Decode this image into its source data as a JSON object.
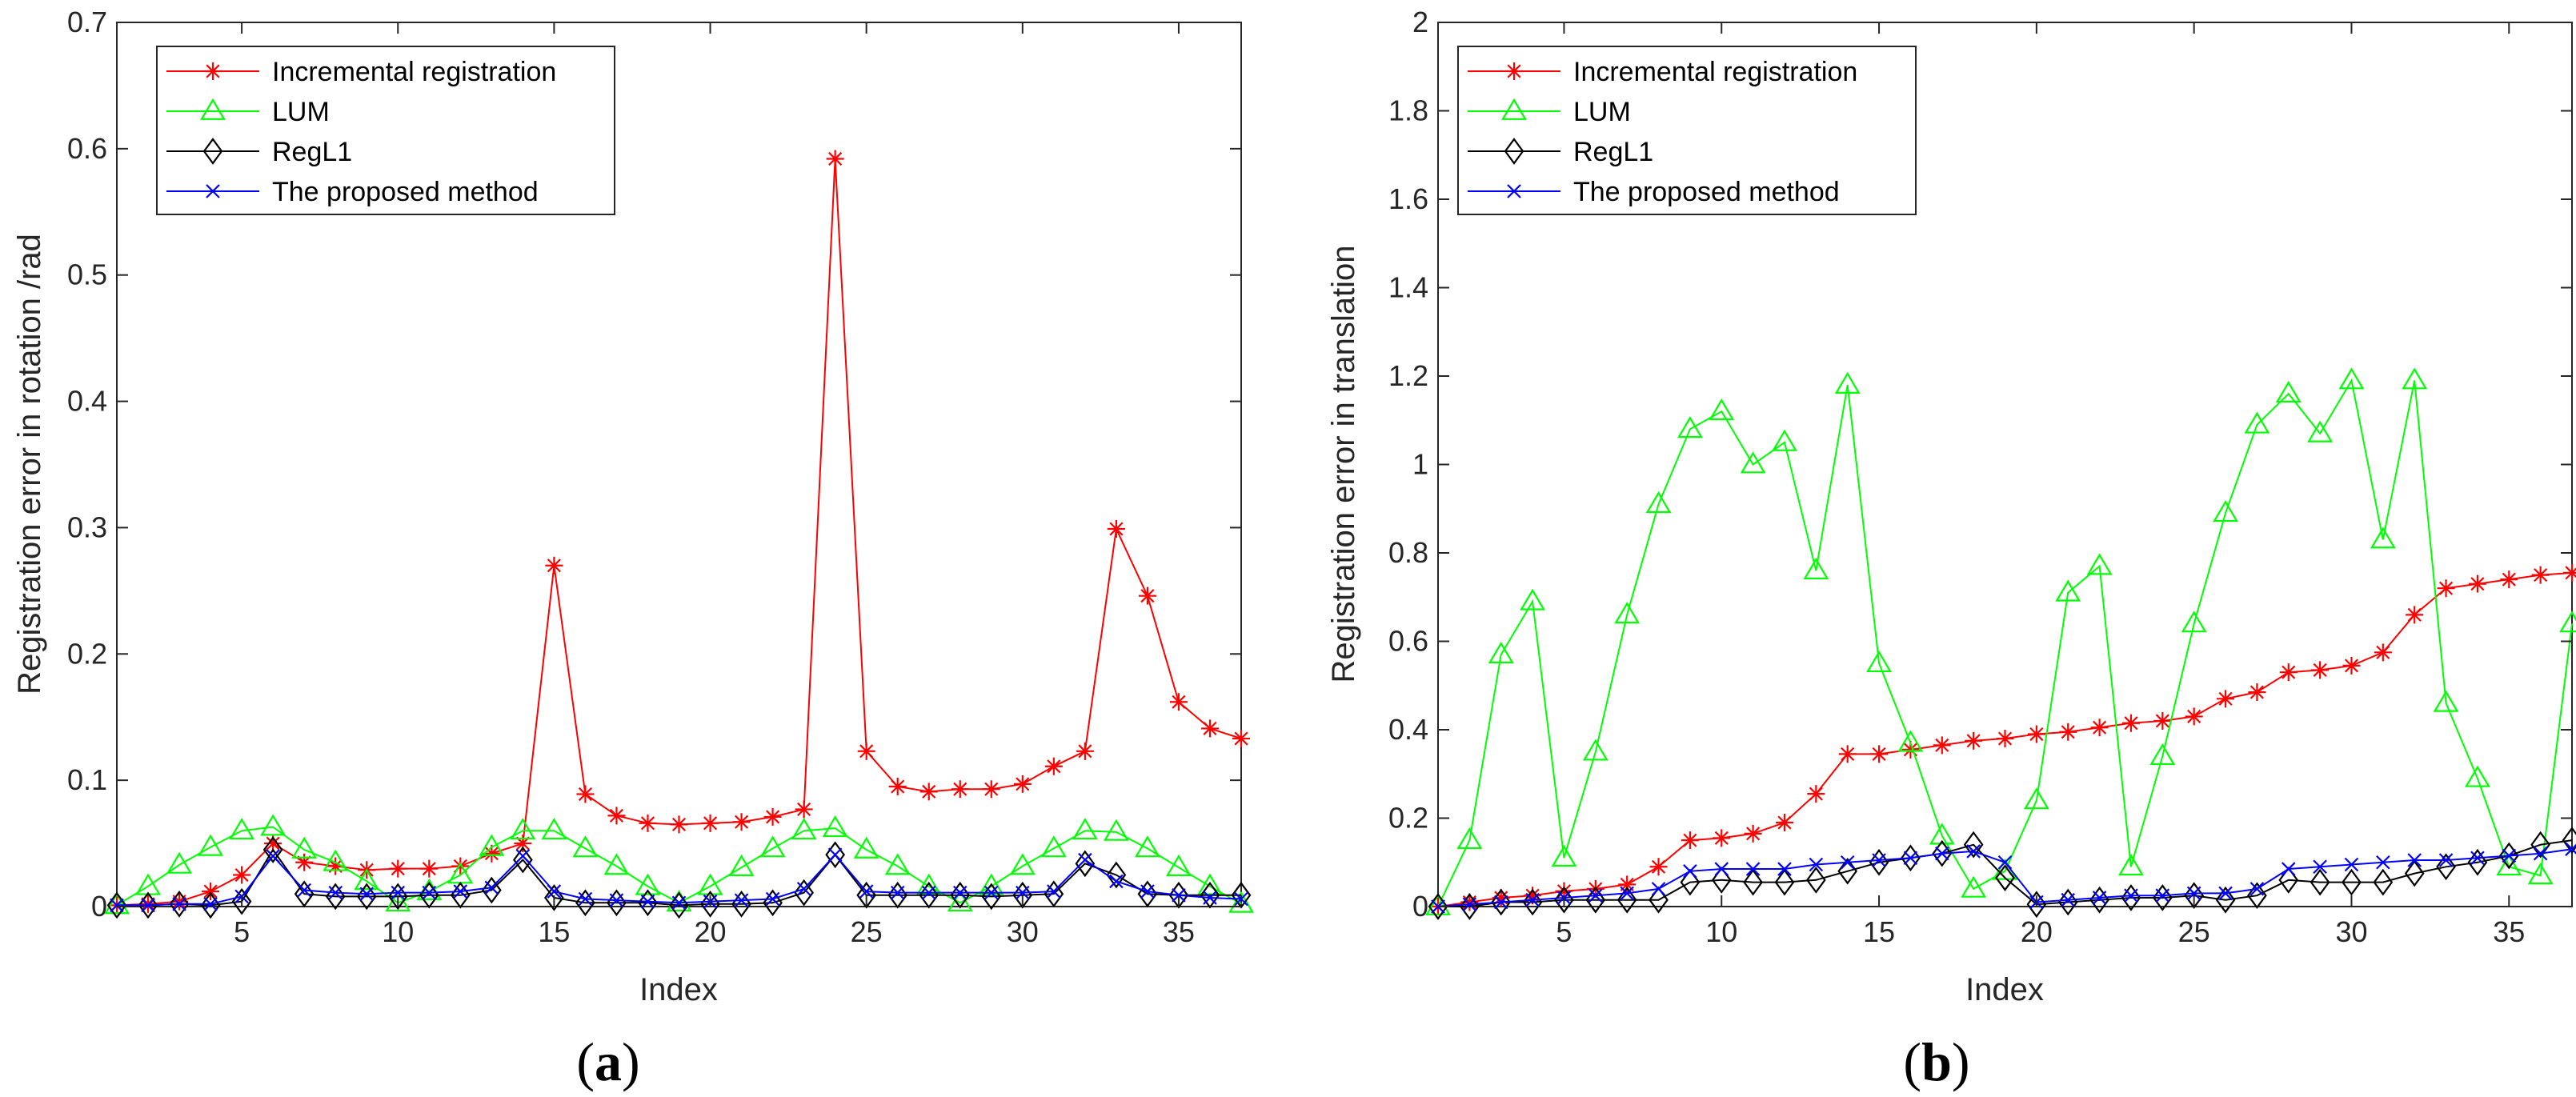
{
  "chart_data": [
    {
      "type": "line",
      "panel_label": "a",
      "title": "",
      "xlabel": "Index",
      "ylabel": "Registration error in rotation /rad",
      "xlim": [
        1,
        37
      ],
      "ylim": [
        0,
        0.7
      ],
      "xticks": [
        5,
        10,
        15,
        20,
        25,
        30,
        35
      ],
      "yticks": [
        0,
        0.1,
        0.2,
        0.3,
        0.4,
        0.5,
        0.6,
        0.7
      ],
      "ytick_labels": [
        "0",
        "0.1",
        "0.2",
        "0.3",
        "0.4",
        "0.5",
        "0.6",
        "0.7"
      ],
      "grid": false,
      "legend_position": "top-left",
      "x": [
        1,
        2,
        3,
        4,
        5,
        6,
        7,
        8,
        9,
        10,
        11,
        12,
        13,
        14,
        15,
        16,
        17,
        18,
        19,
        20,
        21,
        22,
        23,
        24,
        25,
        26,
        27,
        28,
        29,
        30,
        31,
        32,
        33,
        34,
        35,
        36,
        37
      ],
      "series": [
        {
          "name": "Incremental registration",
          "color": "#ff0000",
          "marker": "asterisk",
          "values": [
            0.001,
            0.002,
            0.004,
            0.012,
            0.025,
            0.05,
            0.035,
            0.032,
            0.029,
            0.03,
            0.03,
            0.032,
            0.042,
            0.05,
            0.27,
            0.089,
            0.072,
            0.066,
            0.065,
            0.066,
            0.067,
            0.071,
            0.077,
            0.592,
            0.123,
            0.095,
            0.091,
            0.093,
            0.093,
            0.097,
            0.111,
            0.123,
            0.299,
            0.246,
            0.162,
            0.141,
            0.133
          ]
        },
        {
          "name": "LUM",
          "color": "#00ff00",
          "marker": "triangle",
          "values": [
            0.001,
            0.016,
            0.033,
            0.047,
            0.06,
            0.063,
            0.045,
            0.035,
            0.02,
            0.003,
            0.012,
            0.025,
            0.047,
            0.06,
            0.06,
            0.046,
            0.032,
            0.016,
            0.003,
            0.016,
            0.031,
            0.046,
            0.06,
            0.062,
            0.045,
            0.032,
            0.016,
            0.003,
            0.016,
            0.032,
            0.046,
            0.06,
            0.059,
            0.046,
            0.031,
            0.016,
            0.002
          ]
        },
        {
          "name": "RegL1",
          "color": "#000000",
          "marker": "diamond",
          "values": [
            0.001,
            0.001,
            0.002,
            0.001,
            0.004,
            0.045,
            0.01,
            0.008,
            0.008,
            0.008,
            0.009,
            0.009,
            0.013,
            0.037,
            0.007,
            0.003,
            0.003,
            0.003,
            0.001,
            0.002,
            0.002,
            0.003,
            0.011,
            0.041,
            0.009,
            0.009,
            0.009,
            0.009,
            0.008,
            0.009,
            0.01,
            0.034,
            0.025,
            0.01,
            0.009,
            0.009,
            0.009
          ]
        },
        {
          "name": "The proposed method",
          "color": "#0000ff",
          "marker": "x",
          "values": [
            0.001,
            0.001,
            0.002,
            0.002,
            0.008,
            0.04,
            0.013,
            0.011,
            0.01,
            0.011,
            0.011,
            0.012,
            0.015,
            0.04,
            0.012,
            0.006,
            0.005,
            0.004,
            0.003,
            0.004,
            0.005,
            0.006,
            0.014,
            0.041,
            0.012,
            0.011,
            0.011,
            0.011,
            0.011,
            0.011,
            0.012,
            0.037,
            0.02,
            0.012,
            0.009,
            0.007,
            0.006
          ]
        }
      ]
    },
    {
      "type": "line",
      "panel_label": "b",
      "title": "",
      "xlabel": "Index",
      "ylabel": "Registration error in translation",
      "xlim": [
        1,
        37
      ],
      "ylim": [
        0,
        2
      ],
      "xticks": [
        5,
        10,
        15,
        20,
        25,
        30,
        35
      ],
      "yticks": [
        0,
        0.2,
        0.4,
        0.6,
        0.8,
        1.0,
        1.2,
        1.4,
        1.6,
        1.8,
        2.0
      ],
      "ytick_labels": [
        "0",
        "0.2",
        "0.4",
        "0.6",
        "0.8",
        "1",
        "1.2",
        "1.4",
        "1.6",
        "1.8",
        "2"
      ],
      "grid": false,
      "legend_position": "top-left",
      "x": [
        1,
        2,
        3,
        4,
        5,
        6,
        7,
        8,
        9,
        10,
        11,
        12,
        13,
        14,
        15,
        16,
        17,
        18,
        19,
        20,
        21,
        22,
        23,
        24,
        25,
        26,
        27,
        28,
        29,
        30,
        31,
        32,
        33,
        34,
        35,
        36,
        37
      ],
      "series": [
        {
          "name": "Incremental registration",
          "color": "#ff0000",
          "marker": "asterisk",
          "values": [
            0.0,
            0.01,
            0.02,
            0.025,
            0.035,
            0.04,
            0.05,
            0.09,
            0.15,
            0.155,
            0.165,
            0.19,
            0.255,
            0.345,
            0.345,
            0.355,
            0.365,
            0.375,
            0.38,
            0.39,
            0.395,
            0.405,
            0.415,
            0.42,
            0.43,
            0.47,
            0.485,
            0.53,
            0.535,
            0.545,
            0.575,
            0.66,
            0.72,
            0.73,
            0.74,
            0.75,
            0.755
          ]
        },
        {
          "name": "LUM",
          "color": "#00ff00",
          "marker": "triangle",
          "values": [
            0.0,
            0.15,
            0.57,
            0.69,
            0.11,
            0.35,
            0.66,
            0.91,
            1.08,
            1.12,
            1.0,
            1.05,
            0.76,
            1.18,
            0.55,
            0.37,
            0.16,
            0.04,
            0.08,
            0.24,
            0.71,
            0.77,
            0.09,
            0.34,
            0.64,
            0.89,
            1.09,
            1.16,
            1.07,
            1.19,
            0.83,
            1.19,
            0.46,
            0.29,
            0.09,
            0.07,
            0.64
          ]
        },
        {
          "name": "RegL1",
          "color": "#000000",
          "marker": "diamond",
          "values": [
            0.0,
            0.0,
            0.01,
            0.01,
            0.015,
            0.015,
            0.015,
            0.015,
            0.055,
            0.06,
            0.055,
            0.055,
            0.06,
            0.08,
            0.1,
            0.11,
            0.12,
            0.14,
            0.065,
            0.005,
            0.01,
            0.015,
            0.02,
            0.02,
            0.025,
            0.015,
            0.025,
            0.06,
            0.055,
            0.055,
            0.055,
            0.075,
            0.09,
            0.1,
            0.115,
            0.14,
            0.15
          ]
        },
        {
          "name": "The proposed method",
          "color": "#0000ff",
          "marker": "x",
          "values": [
            0.0,
            0.005,
            0.01,
            0.015,
            0.02,
            0.025,
            0.03,
            0.04,
            0.08,
            0.085,
            0.085,
            0.085,
            0.095,
            0.1,
            0.105,
            0.11,
            0.12,
            0.125,
            0.1,
            0.01,
            0.015,
            0.02,
            0.025,
            0.025,
            0.03,
            0.03,
            0.04,
            0.085,
            0.09,
            0.095,
            0.1,
            0.105,
            0.105,
            0.11,
            0.115,
            0.12,
            0.13
          ]
        }
      ]
    }
  ]
}
